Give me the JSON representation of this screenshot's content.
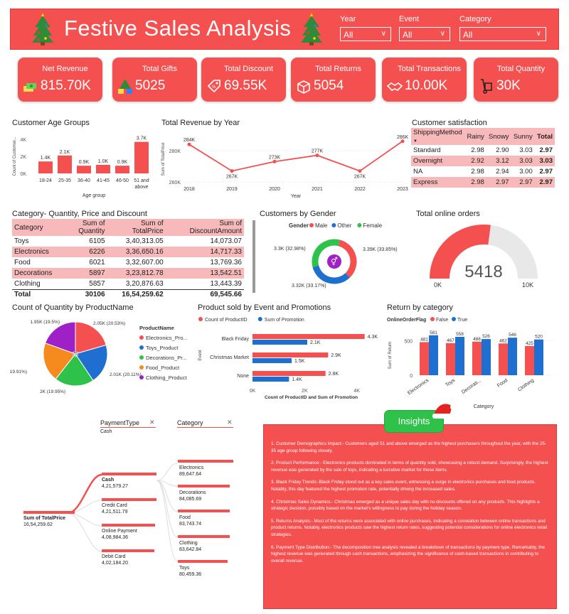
{
  "header": {
    "title": "Festive Sales Analysis",
    "filters": [
      {
        "label": "Year",
        "value": "All"
      },
      {
        "label": "Event",
        "value": "All"
      },
      {
        "label": "Category",
        "value": "All"
      }
    ]
  },
  "kpis": [
    {
      "label": "Net Revenue",
      "value": "815.70K"
    },
    {
      "label": "Total Gifts",
      "value": "5025"
    },
    {
      "label": "Total Discount",
      "value": "69.55K"
    },
    {
      "label": "Total Returns",
      "value": "5054"
    },
    {
      "label": "Total Transactions",
      "value": "10.00K"
    },
    {
      "label": "Total Quantity",
      "value": "30K"
    }
  ],
  "colors": {
    "accent": "#f45050",
    "blue": "#1f6fd0",
    "green": "#2fc24a",
    "orange": "#f58a1f",
    "purple": "#a020c8",
    "pink_row": "#f7b9b9"
  },
  "chart_data": [
    {
      "id": "age",
      "type": "bar",
      "title": "Customer Age Groups",
      "xlabel": "Age group",
      "ylabel": "Count of Customer...",
      "categories": [
        "18-24",
        "25-35",
        "36-40",
        "41-45",
        "46-50",
        "51 and above"
      ],
      "values": [
        1400,
        2100,
        900,
        1000,
        900,
        3700
      ],
      "data_labels": [
        "1.4K",
        "2.1K",
        "0.9K",
        "1.0K",
        "0.9K",
        "3.7K"
      ],
      "y_ticks": [
        "0K",
        "2K",
        "4K"
      ],
      "ylim": [
        0,
        4000
      ]
    },
    {
      "id": "revenue_year",
      "type": "line",
      "title": "Total Revenue by Year",
      "xlabel": "Year",
      "ylabel": "Sum of TotalPrice",
      "x": [
        "2018",
        "2019",
        "2020",
        "2021",
        "2022",
        "2023"
      ],
      "values": [
        284000,
        267000,
        273000,
        277000,
        267000,
        286000
      ],
      "data_labels": [
        "284K",
        "267K",
        "273K",
        "277K",
        "267K",
        "286K"
      ],
      "y_ticks": [
        "260K",
        "280K"
      ],
      "ylim": [
        260000,
        290000
      ]
    },
    {
      "id": "gender",
      "type": "pie",
      "title": "Customers by Gender",
      "legend_title": "Gender",
      "labels": [
        "Male",
        "Other",
        "Female"
      ],
      "values": [
        33.85,
        33.17,
        32.98
      ],
      "data_labels": [
        "3.39K (33.85%)",
        "3.32K (33.17%)",
        "3.3K (32.98%)"
      ]
    },
    {
      "id": "online_orders",
      "type": "gauge",
      "title": "Total online orders",
      "value": 5418,
      "value_label": "5418",
      "min_label": "0K",
      "max_label": "10K",
      "max": 10000
    },
    {
      "id": "product_qty",
      "type": "pie",
      "title": "Count of Quantity by ProductName",
      "legend_title": "ProductName",
      "labels": [
        "Electronics_Pro...",
        "Toys_Product",
        "Decorations_Pr...",
        "Food_Product",
        "Clothing_Product"
      ],
      "values": [
        20.53,
        20.11,
        19.95,
        19.91,
        19.5
      ],
      "data_labels": [
        "2.05K (20.53%)",
        "2.01K (20.11%)",
        "2K (19.95%)",
        "1.99K (19.91%)",
        "1.95K (19.5%)"
      ]
    },
    {
      "id": "event_promo",
      "type": "bar",
      "orientation": "horizontal",
      "title": "Product sold by Event and Promotions",
      "ylabel": "Event",
      "xlabel": "Count of ProductID and Sum of Promotion",
      "categories": [
        "Black Friday",
        "Christmas Market",
        "None"
      ],
      "series": [
        {
          "name": "Count of ProductID",
          "values": [
            4300,
            2900,
            2800
          ],
          "data_labels": [
            "4.3K",
            "2.9K",
            "2.8K"
          ]
        },
        {
          "name": "Sum of Promotion",
          "values": [
            2100,
            1500,
            1400
          ],
          "data_labels": [
            "2.1K",
            "1.5K",
            "1.4K"
          ]
        }
      ],
      "x_ticks": [
        "0K",
        "2K",
        "4K"
      ],
      "xlim": [
        0,
        4500
      ]
    },
    {
      "id": "returns_cat",
      "type": "bar",
      "title": "Return by category",
      "legend_title": "OnlineOrderFlag",
      "xlabel": "Category",
      "ylabel": "Sum of Return",
      "categories": [
        "Electronics",
        "Toys",
        "Decorati...",
        "Food",
        "Clothing"
      ],
      "series": [
        {
          "name": "False",
          "values": [
            481,
            467,
            488,
            462,
            425
          ]
        },
        {
          "name": "True",
          "values": [
            581,
            558,
            526,
            546,
            520
          ]
        }
      ],
      "y_ticks": [
        "0",
        "500"
      ],
      "ylim": [
        0,
        620
      ]
    }
  ],
  "satisfaction": {
    "title": "Customer satisfaction",
    "headers": [
      "ShippingMethod",
      "Rainy",
      "Snowy",
      "Sunny",
      "Total"
    ],
    "rows": [
      [
        "Standard",
        "2.98",
        "2.90",
        "3.03",
        "2.97"
      ],
      [
        "Overnight",
        "2.92",
        "3.12",
        "3.03",
        "3.03"
      ],
      [
        "NA",
        "2.98",
        "2.94",
        "3.00",
        "2.97"
      ],
      [
        "Express",
        "2.98",
        "2.97",
        "2.97",
        "2.97"
      ]
    ]
  },
  "category_table": {
    "title": "Category- Quantity, Price and Discount",
    "headers": [
      "Category",
      "Sum of Quantity",
      "Sum of TotalPrice",
      "Sum of DiscountAmount"
    ],
    "rows": [
      [
        "Toys",
        "6105",
        "3,40,313.05",
        "14,073.07"
      ],
      [
        "Electronics",
        "6226",
        "3,36,650.16",
        "14,717.33"
      ],
      [
        "Food",
        "6021",
        "3,32,607.00",
        "13,769.36"
      ],
      [
        "Decorations",
        "5897",
        "3,23,812.78",
        "13,542.51"
      ],
      [
        "Clothing",
        "5857",
        "3,20,876.63",
        "13,443.39"
      ]
    ],
    "total": [
      "Total",
      "30106",
      "16,54,259.62",
      "69,545.66"
    ]
  },
  "decomposition": {
    "filter1_label": "PaymentType",
    "filter1_value": "Cash",
    "filter2_label": "Category",
    "root_label": "Sum of TotalPrice",
    "root_value": "16,54,259.62",
    "payments": [
      {
        "label": "Cash",
        "value": "4,21,579.27"
      },
      {
        "label": "Credit Card",
        "value": "4,21,511.79"
      },
      {
        "label": "Online Payment",
        "value": "4,08,984.36"
      },
      {
        "label": "Debit Card",
        "value": "4,02,184.20"
      }
    ],
    "categories": [
      {
        "label": "Electronics",
        "value": "89,647.64"
      },
      {
        "label": "Decorations",
        "value": "84,085.69"
      },
      {
        "label": "Food",
        "value": "83,743.74"
      },
      {
        "label": "Clothing",
        "value": "83,642.84"
      },
      {
        "label": "Toys",
        "value": "80,459.36"
      }
    ]
  },
  "insights": {
    "button": "Insights",
    "paragraphs": [
      "1. Customer Demographics Impact:- Customers aged 51 and above emerged as the highest purchasers throughout the year, with the 25-35 age group following closely.",
      "2. Product Performance:- Electronics products dominated in terms of quantity sold, showcasing a robust demand. Surprisingly, the highest revenue was generated by the sale of toys, indicating a lucrative market for these items.",
      "3. Black Friday Trends:-Black Friday stood out as a key sales event, witnessing a surge in electronics purchases and food products. Notably, this day featured the highest promotion rate, potentially driving the increased sales.",
      "4. Christmas Sales Dynamics:- Christmas emerged as a unique sales day with no discounts offered on any products. This highlights a strategic decision, possibly based on the market's willingness to pay during the holiday season.",
      "5. Returns Analysis:- Most of the returns were associated with online purchases, indicating a correlation between online transactions and product returns. Notably, electronics products saw the highest return rates, suggesting potential considerations for online electronics retail strategies.",
      "6. Payment Type Distribution:- The decomposition tree analysis revealed a breakdown of transactions by payment type. Remarkably, the highest revenue was generated through cash transactions, emphasizing the significance of cash-based transactions in contributing to overall revenue."
    ]
  }
}
